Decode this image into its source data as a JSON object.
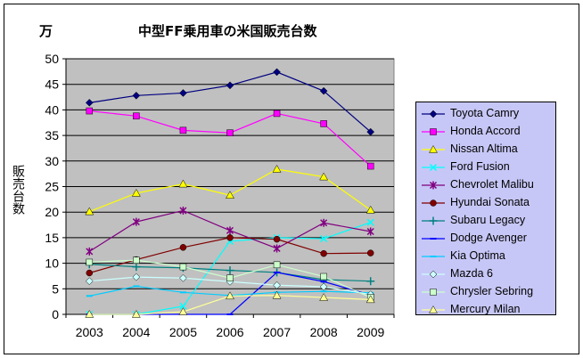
{
  "unit_label": "万",
  "chart_data": {
    "type": "line",
    "title": "中型FF乗用車の米国販売台数",
    "xlabel": "",
    "ylabel": "販売台数",
    "ylim": [
      0,
      50
    ],
    "yticks": [
      0,
      5,
      10,
      15,
      20,
      25,
      30,
      35,
      40,
      45,
      50
    ],
    "categories": [
      "2003",
      "2004",
      "2005",
      "2006",
      "2007",
      "2008",
      "2009"
    ],
    "grid": true,
    "legend_position": "right",
    "series": [
      {
        "name": "Toyota Camry",
        "color": "#000080",
        "marker": "diamond",
        "values": [
          41.4,
          42.8,
          43.3,
          44.8,
          47.4,
          43.7,
          35.7
        ]
      },
      {
        "name": "Honda Accord",
        "color": "#ff00ff",
        "marker": "square",
        "values": [
          39.8,
          38.8,
          36.0,
          35.5,
          39.3,
          37.3,
          29.0
        ]
      },
      {
        "name": "Nissan Altima",
        "color": "#ffff00",
        "marker": "triangle",
        "values": [
          20.1,
          23.7,
          25.5,
          23.3,
          28.4,
          26.9,
          20.4
        ]
      },
      {
        "name": "Ford Fusion",
        "color": "#00ffff",
        "marker": "x",
        "values": [
          0.0,
          0.0,
          1.6,
          14.3,
          15.0,
          14.8,
          18.0
        ]
      },
      {
        "name": "Chevrolet Malibu",
        "color": "#800080",
        "marker": "star",
        "values": [
          12.3,
          18.1,
          20.3,
          16.4,
          12.9,
          17.9,
          16.2
        ]
      },
      {
        "name": "Hyundai Sonata",
        "color": "#800000",
        "marker": "circle",
        "values": [
          8.1,
          10.7,
          13.1,
          15.0,
          14.7,
          11.9,
          12.0
        ]
      },
      {
        "name": "Subaru Legacy",
        "color": "#008080",
        "marker": "plus",
        "values": [
          9.8,
          9.3,
          9.1,
          8.6,
          8.2,
          6.8,
          6.5
        ]
      },
      {
        "name": "Dodge Avenger",
        "color": "#0000ff",
        "marker": "dash",
        "values": [
          0.0,
          0.0,
          0.0,
          0.0,
          8.2,
          6.4,
          3.8
        ]
      },
      {
        "name": "Kia Optima",
        "color": "#00ccff",
        "marker": "dash",
        "values": [
          3.6,
          5.5,
          4.3,
          3.7,
          4.3,
          4.5,
          4.2
        ]
      },
      {
        "name": "Mazda 6",
        "color": "#ccffff",
        "marker": "diamond",
        "values": [
          6.5,
          7.3,
          7.1,
          6.4,
          5.7,
          5.4,
          3.9
        ]
      },
      {
        "name": "Chrysler Sebring",
        "color": "#ccffcc",
        "marker": "square",
        "values": [
          10.2,
          10.6,
          9.3,
          7.1,
          9.7,
          7.4,
          3.3
        ]
      },
      {
        "name": "Mercury Milan",
        "color": "#ffff99",
        "marker": "triangle",
        "values": [
          0.0,
          0.0,
          0.5,
          3.6,
          3.7,
          3.3,
          2.9
        ]
      }
    ]
  }
}
